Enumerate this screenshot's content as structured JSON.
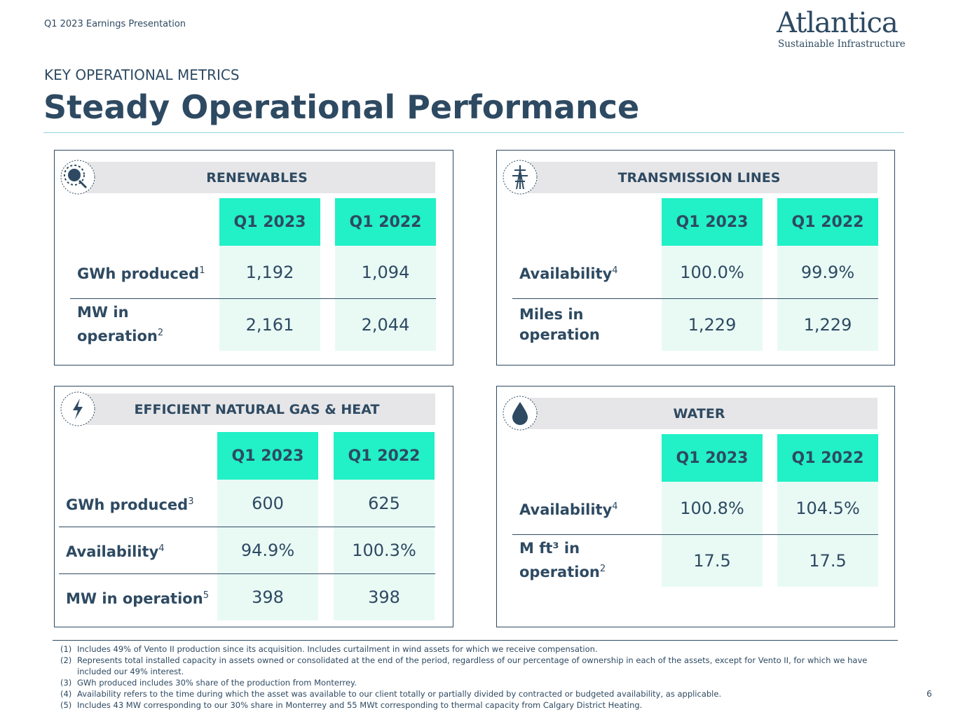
{
  "header": {
    "deck": "Q1 2023 Earnings Presentation",
    "logo_name": "Atlantica",
    "logo_tagline": "Sustainable Infrastructure",
    "section": "KEY OPERATIONAL METRICS",
    "title": "Steady Operational Performance"
  },
  "panels": [
    {
      "title": "RENEWABLES",
      "columns": [
        "Q1 2023",
        "Q1 2022"
      ],
      "rows": [
        {
          "label": "GWh produced",
          "note": "1",
          "values": [
            "1,192",
            "1,094"
          ]
        },
        {
          "label": "MW in operation",
          "note": "2",
          "values": [
            "2,161",
            "2,044"
          ]
        }
      ]
    },
    {
      "title": "TRANSMISSION LINES",
      "columns": [
        "Q1 2023",
        "Q1 2022"
      ],
      "rows": [
        {
          "label": "Availability",
          "note": "4",
          "values": [
            "100.0%",
            "99.9%"
          ]
        },
        {
          "label": "Miles in operation",
          "values": [
            "1,229",
            "1,229"
          ]
        }
      ]
    },
    {
      "title": "EFFICIENT NATURAL GAS & HEAT",
      "columns": [
        "Q1 2023",
        "Q1 2022"
      ],
      "rows": [
        {
          "label": "GWh produced",
          "note": "3",
          "values": [
            "600",
            "625"
          ]
        },
        {
          "label": "Availability",
          "note": "4",
          "values": [
            "94.9%",
            "100.3%"
          ]
        },
        {
          "label": "MW in operation",
          "note": "5",
          "values": [
            "398",
            "398"
          ]
        }
      ]
    },
    {
      "title": "WATER",
      "columns": [
        "Q1 2023",
        "Q1 2022"
      ],
      "rows": [
        {
          "label": "Availability",
          "note": "4",
          "values": [
            "100.8%",
            "104.5%"
          ]
        },
        {
          "label": "M ft³ in operation",
          "note": "2",
          "values": [
            "17.5",
            "17.5"
          ]
        }
      ]
    }
  ],
  "footnotes": [
    {
      "marker": "(1)",
      "text": "Includes 49% of Vento II production since its acquisition. Includes curtailment in wind assets for which we receive compensation."
    },
    {
      "marker": "(2)",
      "text": "Represents total installed capacity in assets owned or consolidated at the end of the period, regardless of our percentage of ownership in each of the assets, except for Vento II, for which we have included our 49% interest."
    },
    {
      "marker": "(3)",
      "text": "GWh produced includes 30% share of the production from Monterrey."
    },
    {
      "marker": "(4)",
      "text": "Availability refers to the time during which the asset was available to our client totally or partially divided by contracted or budgeted availability, as applicable."
    },
    {
      "marker": "(5)",
      "text": "Includes 43 MW corresponding to our 30% share in Monterrey and 55 MWt corresponding to thermal capacity from Calgary District Heating."
    }
  ],
  "page_number": "6"
}
